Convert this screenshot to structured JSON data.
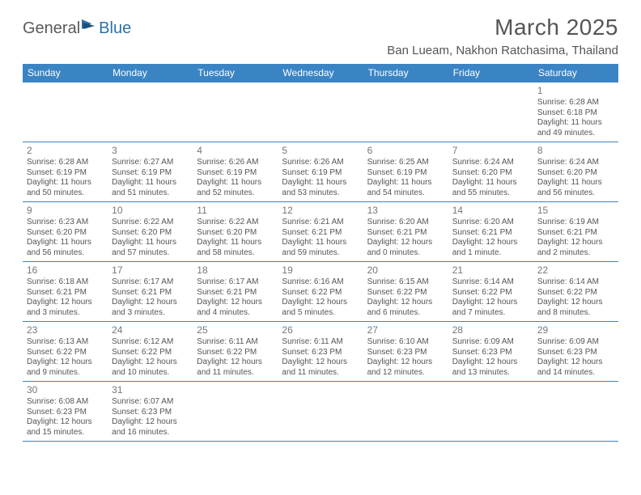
{
  "brand": {
    "part1": "General",
    "part2": "Blue"
  },
  "title": "March 2025",
  "location": "Ban Lueam, Nakhon Ratchasima, Thailand",
  "weekdays": [
    "Sunday",
    "Monday",
    "Tuesday",
    "Wednesday",
    "Thursday",
    "Friday",
    "Saturday"
  ],
  "style": {
    "header_bg": "#3b84c4",
    "header_text": "#ffffff",
    "row_border": "#3b84c4",
    "body_text": "#555555",
    "daynum_text": "#777777",
    "title_fontsize": 28,
    "location_fontsize": 15,
    "weekday_fontsize": 12,
    "cell_fontsize": 10,
    "daynum_fontsize": 12
  },
  "rows": [
    [
      null,
      null,
      null,
      null,
      null,
      null,
      {
        "day": "1",
        "sunrise": "Sunrise: 6:28 AM",
        "sunset": "Sunset: 6:18 PM",
        "daylight": "Daylight: 11 hours and 49 minutes."
      }
    ],
    [
      {
        "day": "2",
        "sunrise": "Sunrise: 6:28 AM",
        "sunset": "Sunset: 6:19 PM",
        "daylight": "Daylight: 11 hours and 50 minutes."
      },
      {
        "day": "3",
        "sunrise": "Sunrise: 6:27 AM",
        "sunset": "Sunset: 6:19 PM",
        "daylight": "Daylight: 11 hours and 51 minutes."
      },
      {
        "day": "4",
        "sunrise": "Sunrise: 6:26 AM",
        "sunset": "Sunset: 6:19 PM",
        "daylight": "Daylight: 11 hours and 52 minutes."
      },
      {
        "day": "5",
        "sunrise": "Sunrise: 6:26 AM",
        "sunset": "Sunset: 6:19 PM",
        "daylight": "Daylight: 11 hours and 53 minutes."
      },
      {
        "day": "6",
        "sunrise": "Sunrise: 6:25 AM",
        "sunset": "Sunset: 6:19 PM",
        "daylight": "Daylight: 11 hours and 54 minutes."
      },
      {
        "day": "7",
        "sunrise": "Sunrise: 6:24 AM",
        "sunset": "Sunset: 6:20 PM",
        "daylight": "Daylight: 11 hours and 55 minutes."
      },
      {
        "day": "8",
        "sunrise": "Sunrise: 6:24 AM",
        "sunset": "Sunset: 6:20 PM",
        "daylight": "Daylight: 11 hours and 56 minutes."
      }
    ],
    [
      {
        "day": "9",
        "sunrise": "Sunrise: 6:23 AM",
        "sunset": "Sunset: 6:20 PM",
        "daylight": "Daylight: 11 hours and 56 minutes."
      },
      {
        "day": "10",
        "sunrise": "Sunrise: 6:22 AM",
        "sunset": "Sunset: 6:20 PM",
        "daylight": "Daylight: 11 hours and 57 minutes."
      },
      {
        "day": "11",
        "sunrise": "Sunrise: 6:22 AM",
        "sunset": "Sunset: 6:20 PM",
        "daylight": "Daylight: 11 hours and 58 minutes."
      },
      {
        "day": "12",
        "sunrise": "Sunrise: 6:21 AM",
        "sunset": "Sunset: 6:21 PM",
        "daylight": "Daylight: 11 hours and 59 minutes."
      },
      {
        "day": "13",
        "sunrise": "Sunrise: 6:20 AM",
        "sunset": "Sunset: 6:21 PM",
        "daylight": "Daylight: 12 hours and 0 minutes."
      },
      {
        "day": "14",
        "sunrise": "Sunrise: 6:20 AM",
        "sunset": "Sunset: 6:21 PM",
        "daylight": "Daylight: 12 hours and 1 minute."
      },
      {
        "day": "15",
        "sunrise": "Sunrise: 6:19 AM",
        "sunset": "Sunset: 6:21 PM",
        "daylight": "Daylight: 12 hours and 2 minutes."
      }
    ],
    [
      {
        "day": "16",
        "sunrise": "Sunrise: 6:18 AM",
        "sunset": "Sunset: 6:21 PM",
        "daylight": "Daylight: 12 hours and 3 minutes."
      },
      {
        "day": "17",
        "sunrise": "Sunrise: 6:17 AM",
        "sunset": "Sunset: 6:21 PM",
        "daylight": "Daylight: 12 hours and 3 minutes."
      },
      {
        "day": "18",
        "sunrise": "Sunrise: 6:17 AM",
        "sunset": "Sunset: 6:21 PM",
        "daylight": "Daylight: 12 hours and 4 minutes."
      },
      {
        "day": "19",
        "sunrise": "Sunrise: 6:16 AM",
        "sunset": "Sunset: 6:22 PM",
        "daylight": "Daylight: 12 hours and 5 minutes."
      },
      {
        "day": "20",
        "sunrise": "Sunrise: 6:15 AM",
        "sunset": "Sunset: 6:22 PM",
        "daylight": "Daylight: 12 hours and 6 minutes."
      },
      {
        "day": "21",
        "sunrise": "Sunrise: 6:14 AM",
        "sunset": "Sunset: 6:22 PM",
        "daylight": "Daylight: 12 hours and 7 minutes."
      },
      {
        "day": "22",
        "sunrise": "Sunrise: 6:14 AM",
        "sunset": "Sunset: 6:22 PM",
        "daylight": "Daylight: 12 hours and 8 minutes."
      }
    ],
    [
      {
        "day": "23",
        "sunrise": "Sunrise: 6:13 AM",
        "sunset": "Sunset: 6:22 PM",
        "daylight": "Daylight: 12 hours and 9 minutes."
      },
      {
        "day": "24",
        "sunrise": "Sunrise: 6:12 AM",
        "sunset": "Sunset: 6:22 PM",
        "daylight": "Daylight: 12 hours and 10 minutes."
      },
      {
        "day": "25",
        "sunrise": "Sunrise: 6:11 AM",
        "sunset": "Sunset: 6:22 PM",
        "daylight": "Daylight: 12 hours and 11 minutes."
      },
      {
        "day": "26",
        "sunrise": "Sunrise: 6:11 AM",
        "sunset": "Sunset: 6:23 PM",
        "daylight": "Daylight: 12 hours and 11 minutes."
      },
      {
        "day": "27",
        "sunrise": "Sunrise: 6:10 AM",
        "sunset": "Sunset: 6:23 PM",
        "daylight": "Daylight: 12 hours and 12 minutes."
      },
      {
        "day": "28",
        "sunrise": "Sunrise: 6:09 AM",
        "sunset": "Sunset: 6:23 PM",
        "daylight": "Daylight: 12 hours and 13 minutes."
      },
      {
        "day": "29",
        "sunrise": "Sunrise: 6:09 AM",
        "sunset": "Sunset: 6:23 PM",
        "daylight": "Daylight: 12 hours and 14 minutes."
      }
    ],
    [
      {
        "day": "30",
        "sunrise": "Sunrise: 6:08 AM",
        "sunset": "Sunset: 6:23 PM",
        "daylight": "Daylight: 12 hours and 15 minutes."
      },
      {
        "day": "31",
        "sunrise": "Sunrise: 6:07 AM",
        "sunset": "Sunset: 6:23 PM",
        "daylight": "Daylight: 12 hours and 16 minutes."
      },
      null,
      null,
      null,
      null,
      null
    ]
  ]
}
